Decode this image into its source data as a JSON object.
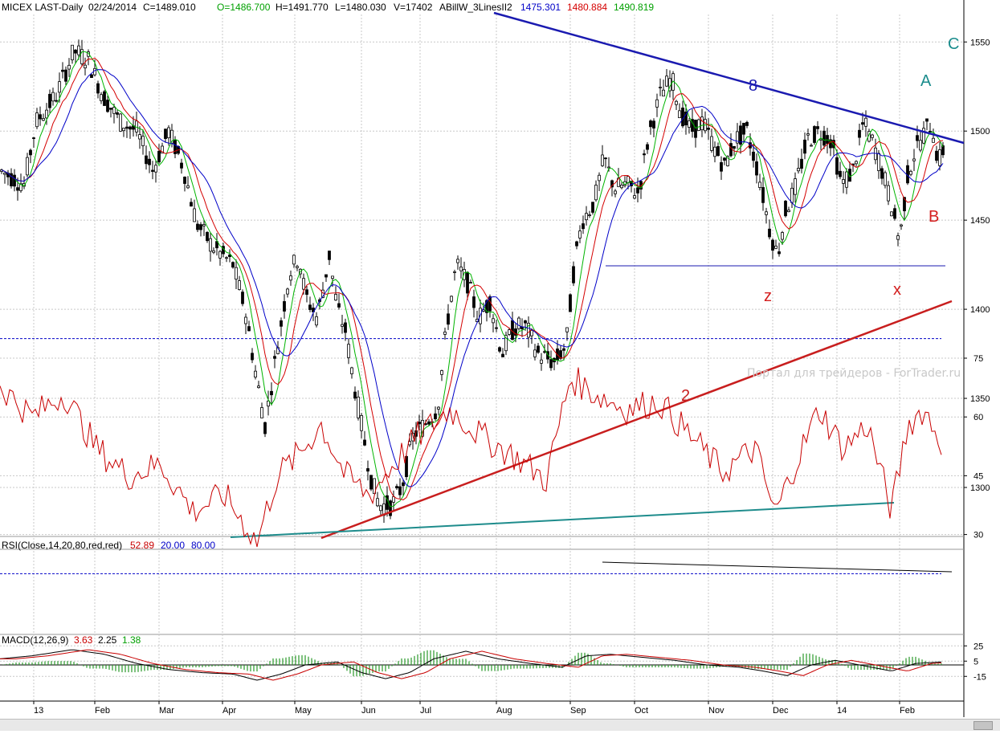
{
  "header": {
    "symbol": "MICEX LAST-Daily",
    "date": "02/24/2014",
    "close": "C=1489.010",
    "open": "O=1486.700",
    "high": "H=1491.770",
    "low": "L=1480.030",
    "volume": "V=17402",
    "indicator_name": "ABillW_3LinesII2",
    "ind_val_1": "1475.301",
    "ind_val_2": "1480.884",
    "ind_val_3": "1490.819"
  },
  "rsi_header": {
    "label": "RSI(Close,14,20,80,red,red)",
    "value": "52.89",
    "low": "20.00",
    "high": "80.00"
  },
  "macd_header": {
    "label": "MACD(12,26,9)",
    "macd": "3.63",
    "signal": "2.25",
    "hist": "1.38"
  },
  "price_axis": [
    "1550",
    "1500",
    "1450",
    "1400",
    "1350",
    "1300"
  ],
  "rsi_axis": [
    "75",
    "60",
    "45",
    "30"
  ],
  "macd_axis": [
    "25",
    "5",
    "-15"
  ],
  "months": [
    "13",
    "Feb",
    "Mar",
    "Apr",
    "May",
    "Jun",
    "Jul",
    "Aug",
    "Sep",
    "Oct",
    "Nov",
    "Dec",
    "14",
    "Feb"
  ],
  "annotations": {
    "a": "A",
    "b": "B",
    "c": "C",
    "x": "x",
    "z": "z",
    "eight": "8",
    "two": "2"
  },
  "watermark": "Портал для трейдеров - ForTrader.ru",
  "colors": {
    "candle": "#000000",
    "ma_green": "#00b400",
    "ma_red": "#d40000",
    "ma_blue": "#0000c8",
    "trend_blue": "#1a1ab0",
    "trend_red": "#c81e1e",
    "trend_teal": "#1e8c8c",
    "rsi_line": "#c80000",
    "macd_line": "#000000",
    "macd_signal": "#c80000",
    "macd_hist": "#2a9a2a"
  },
  "chart_data": [
    {
      "type": "candlestick",
      "title": "MICEX LAST-Daily",
      "x": [
        "2013-01",
        "2013-02",
        "2013-03",
        "2013-04",
        "2013-05",
        "2013-06",
        "2013-07",
        "2013-08",
        "2013-09",
        "2013-10",
        "2013-11",
        "2013-12",
        "2014-01",
        "2014-02"
      ],
      "x_tick_labels": [
        "13",
        "Feb",
        "Mar",
        "Apr",
        "May",
        "Jun",
        "Jul",
        "Aug",
        "Sep",
        "Oct",
        "Nov",
        "Dec",
        "14",
        "Feb"
      ],
      "y_range": [
        1270,
        1565
      ],
      "y_ticks": [
        1300,
        1350,
        1400,
        1450,
        1500,
        1550
      ],
      "grid": true,
      "series": [
        {
          "values": [
            1478,
            1545,
            1500,
            1420,
            1370,
            1290,
            1345,
            1390,
            1470,
            1520,
            1490,
            1430,
            1500,
            1490
          ]
        }
      ],
      "legend": "none"
    },
    {
      "type": "line",
      "title": "RSI(Close,14,20,80,red,red)",
      "y_ticks": [
        30,
        45,
        60,
        75
      ],
      "series": [
        {
          "values": [
            68,
            62,
            48,
            38,
            52,
            36,
            60,
            55,
            70,
            64,
            52,
            38,
            62,
            53
          ]
        }
      ]
    },
    {
      "type": "line",
      "title": "MACD(12,26,9)",
      "y_ticks": [
        -15,
        5,
        25
      ],
      "series": [
        {
          "values": [
            12,
            18,
            -2,
            -10,
            0,
            -18,
            15,
            2,
            10,
            5,
            -3,
            -12,
            2,
            4
          ]
        },
        {
          "values": [
            10,
            16,
            0,
            -8,
            -2,
            -15,
            10,
            4,
            8,
            6,
            -1,
            -10,
            0,
            2
          ]
        }
      ]
    }
  ]
}
